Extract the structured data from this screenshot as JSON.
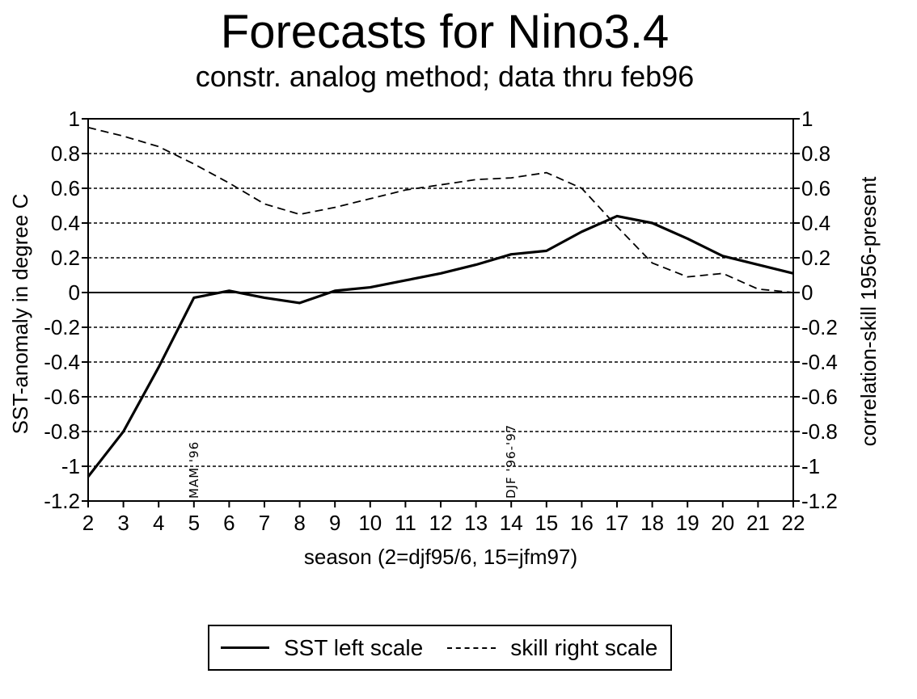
{
  "chart_data": {
    "type": "line",
    "title": "Forecasts for Nino3.4",
    "subtitle": "constr. analog method; data thru feb96",
    "xlabel": "season (2=djf95/6, 15=jfm97)",
    "ylabel": "SST-anomaly in degree C",
    "y2label": "correlation-skill 1956-present",
    "xlim": [
      2,
      22
    ],
    "ylim": [
      -1.2,
      1
    ],
    "y2lim": [
      -1.2,
      1
    ],
    "x_ticks": [
      "2",
      "3",
      "4",
      "5",
      "6",
      "7",
      "8",
      "9",
      "10",
      "11",
      "12",
      "13",
      "14",
      "15",
      "16",
      "17",
      "18",
      "19",
      "20",
      "21",
      "22"
    ],
    "y_ticks": [
      "1",
      "0.8",
      "0.6",
      "0.4",
      "0.2",
      "0",
      "-0.2",
      "-0.4",
      "-0.6",
      "-0.8",
      "-1",
      "-1.2"
    ],
    "y2_ticks": [
      "1",
      "0.8",
      "0.6",
      "0.4",
      "0.2",
      "0",
      "-0.2",
      "-0.4",
      "-0.6",
      "-0.8",
      "-1",
      "-1.2"
    ],
    "grid": true,
    "legend_position": "bottom-center",
    "x": [
      2,
      3,
      4,
      5,
      6,
      7,
      8,
      9,
      10,
      11,
      12,
      13,
      14,
      15,
      16,
      17,
      18,
      19,
      20,
      21,
      22
    ],
    "series": [
      {
        "name": "SST left scale",
        "axis": "left",
        "style": "solid",
        "values": [
          -1.06,
          -0.8,
          -0.43,
          -0.03,
          0.01,
          -0.03,
          -0.06,
          0.01,
          0.03,
          0.07,
          0.11,
          0.16,
          0.22,
          0.24,
          0.35,
          0.44,
          0.4,
          0.31,
          0.21,
          0.16,
          0.11
        ]
      },
      {
        "name": "skill right scale",
        "axis": "right",
        "style": "dashed",
        "values": [
          0.95,
          0.9,
          0.84,
          0.74,
          0.63,
          0.51,
          0.45,
          0.49,
          0.54,
          0.59,
          0.62,
          0.65,
          0.66,
          0.69,
          0.6,
          0.38,
          0.17,
          0.09,
          0.11,
          0.02,
          0.0
        ]
      }
    ],
    "annotations": [
      {
        "text": "MAM '96",
        "x": 5
      },
      {
        "text": "DJF '96-'97",
        "x": 14
      }
    ]
  }
}
